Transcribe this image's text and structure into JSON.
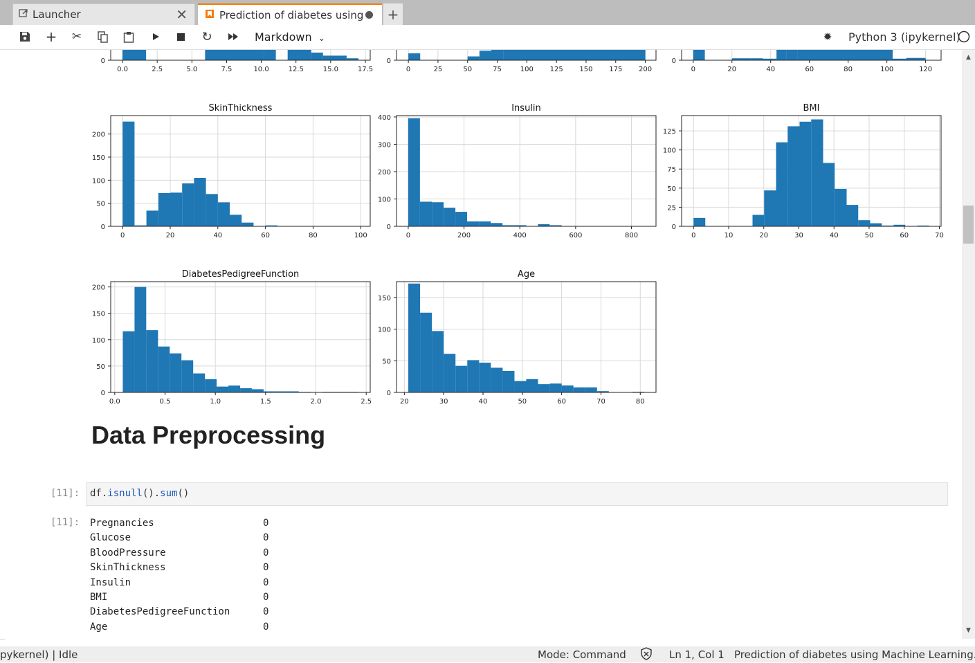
{
  "tabs": [
    {
      "label": "Launcher"
    },
    {
      "label": "Prediction of diabetes using"
    }
  ],
  "toolbar": {
    "cell_type": "Markdown",
    "kernel": "Python 3 (ipykernel)"
  },
  "notebook": {
    "heading": "Data Preprocessing",
    "code_prompt": "[11]:",
    "code_var": "df.",
    "code_fn1": "isnull",
    "code_mid": "().",
    "code_fn2": "sum",
    "code_end": "()",
    "output_prompt": "[11]:",
    "output_rows": [
      {
        "name": "Pregnancies",
        "value": "0"
      },
      {
        "name": "Glucose",
        "value": "0"
      },
      {
        "name": "BloodPressure",
        "value": "0"
      },
      {
        "name": "SkinThickness",
        "value": "0"
      },
      {
        "name": "Insulin",
        "value": "0"
      },
      {
        "name": "BMI",
        "value": "0"
      },
      {
        "name": "DiabetesPedigreeFunction",
        "value": "0"
      },
      {
        "name": "Age",
        "value": "0"
      }
    ]
  },
  "status": {
    "left": "pykernel) | Idle",
    "mode": "Mode: Command",
    "position": "Ln 1, Col 1",
    "file": "Prediction of diabetes using Machine Learning.ip"
  },
  "colors": {
    "bar": "#1f77b4",
    "accent": "#f57c00"
  },
  "chart_data": [
    {
      "type": "bar",
      "title": "",
      "xticks": [
        "0.0",
        "2.5",
        "5.0",
        "7.5",
        "10.0",
        "12.5",
        "15.0",
        "17.5"
      ],
      "xlim": [
        -0.85,
        17.85
      ],
      "partial": true
    },
    {
      "type": "bar",
      "title": "",
      "xticks": [
        "0",
        "25",
        "50",
        "75",
        "100",
        "125",
        "150",
        "175",
        "200"
      ],
      "xlim": [
        -10,
        209
      ],
      "partial": true
    },
    {
      "type": "bar",
      "title": "",
      "xticks": [
        "0",
        "20",
        "40",
        "60",
        "80",
        "100",
        "120"
      ],
      "xlim": [
        -6,
        128
      ],
      "partial": true
    },
    {
      "type": "bar",
      "title": "SkinThickness",
      "xlim": [
        -5,
        104
      ],
      "ylim": [
        0,
        240
      ],
      "xticks": [
        0,
        20,
        40,
        60,
        80,
        100
      ],
      "yticks": [
        0,
        50,
        100,
        150,
        200
      ],
      "bins": [
        [
          0,
          5,
          227
        ],
        [
          5,
          10,
          2
        ],
        [
          10,
          15,
          34
        ],
        [
          15,
          20,
          72
        ],
        [
          20,
          25,
          73
        ],
        [
          25,
          30,
          93
        ],
        [
          30,
          35,
          105
        ],
        [
          35,
          40,
          70
        ],
        [
          40,
          45,
          52
        ],
        [
          45,
          50,
          25
        ],
        [
          50,
          55,
          8
        ],
        [
          55,
          60,
          0
        ],
        [
          60,
          65,
          2
        ]
      ]
    },
    {
      "type": "bar",
      "title": "Insulin",
      "xlim": [
        -42,
        888
      ],
      "ylim": [
        0,
        405
      ],
      "xticks": [
        0,
        200,
        400,
        600,
        800
      ],
      "yticks": [
        0,
        100,
        200,
        300,
        400
      ],
      "bins": [
        [
          0,
          42,
          395
        ],
        [
          42,
          85,
          90
        ],
        [
          85,
          127,
          88
        ],
        [
          127,
          169,
          68
        ],
        [
          169,
          211,
          53
        ],
        [
          211,
          254,
          18
        ],
        [
          254,
          296,
          18
        ],
        [
          296,
          338,
          12
        ],
        [
          338,
          380,
          4
        ],
        [
          380,
          423,
          4
        ],
        [
          423,
          465,
          0
        ],
        [
          465,
          507,
          8
        ],
        [
          507,
          550,
          4
        ]
      ]
    },
    {
      "type": "bar",
      "title": "BMI",
      "xlim": [
        -3.4,
        70.5
      ],
      "ylim": [
        0,
        145
      ],
      "xticks": [
        0,
        10,
        20,
        30,
        40,
        50,
        60,
        70
      ],
      "yticks": [
        0,
        25,
        50,
        75,
        100,
        125
      ],
      "bins": [
        [
          0,
          3.35,
          11
        ],
        [
          16.8,
          20.1,
          15
        ],
        [
          20.1,
          23.5,
          47
        ],
        [
          23.5,
          26.8,
          110
        ],
        [
          26.8,
          30.2,
          131
        ],
        [
          30.2,
          33.5,
          137
        ],
        [
          33.5,
          36.9,
          140
        ],
        [
          36.9,
          40.2,
          83
        ],
        [
          40.2,
          43.6,
          49
        ],
        [
          43.6,
          46.9,
          28
        ],
        [
          46.9,
          50.3,
          8
        ],
        [
          50.3,
          53.6,
          4
        ],
        [
          53.6,
          57.0,
          1
        ],
        [
          57.0,
          60.3,
          2
        ],
        [
          63.7,
          67.1,
          1
        ]
      ]
    },
    {
      "type": "bar",
      "title": "DiabetesPedigreeFunction",
      "xlim": [
        -0.04,
        2.54
      ],
      "ylim": [
        0,
        210
      ],
      "xticks": [
        "0.0",
        "0.5",
        "1.0",
        "1.5",
        "2.0",
        "2.5"
      ],
      "yticks": [
        0,
        50,
        100,
        150,
        200
      ],
      "bins": [
        [
          0.08,
          0.197,
          116
        ],
        [
          0.197,
          0.313,
          200
        ],
        [
          0.313,
          0.43,
          118
        ],
        [
          0.43,
          0.547,
          87
        ],
        [
          0.547,
          0.663,
          74
        ],
        [
          0.663,
          0.78,
          61
        ],
        [
          0.78,
          0.897,
          36
        ],
        [
          0.897,
          1.013,
          25
        ],
        [
          1.013,
          1.13,
          11
        ],
        [
          1.13,
          1.247,
          13
        ],
        [
          1.247,
          1.363,
          8
        ],
        [
          1.363,
          1.48,
          6
        ],
        [
          1.48,
          1.597,
          2
        ],
        [
          1.597,
          1.713,
          2
        ],
        [
          1.713,
          1.83,
          2
        ],
        [
          1.83,
          1.947,
          1
        ],
        [
          1.947,
          2.063,
          0
        ],
        [
          2.063,
          2.18,
          1
        ],
        [
          2.18,
          2.297,
          1
        ],
        [
          2.297,
          2.42,
          1
        ]
      ]
    },
    {
      "type": "bar",
      "title": "Age",
      "xlim": [
        18,
        84
      ],
      "ylim": [
        0,
        175
      ],
      "xticks": [
        20,
        30,
        40,
        50,
        60,
        70,
        80
      ],
      "yticks": [
        0,
        50,
        100,
        150
      ],
      "bins": [
        [
          21,
          24,
          172
        ],
        [
          24,
          27,
          126
        ],
        [
          27,
          30,
          97
        ],
        [
          30,
          33,
          61
        ],
        [
          33,
          36,
          42
        ],
        [
          36,
          39,
          51
        ],
        [
          39,
          42,
          47
        ],
        [
          42,
          45,
          39
        ],
        [
          45,
          48,
          34
        ],
        [
          48,
          51,
          18
        ],
        [
          51,
          54,
          21
        ],
        [
          54,
          57,
          13
        ],
        [
          57,
          60,
          14
        ],
        [
          60,
          63,
          11
        ],
        [
          63,
          66,
          8
        ],
        [
          66,
          69,
          8
        ],
        [
          69,
          72,
          2
        ],
        [
          72,
          75,
          0
        ],
        [
          75,
          78,
          0
        ],
        [
          78,
          81,
          1
        ]
      ]
    }
  ]
}
